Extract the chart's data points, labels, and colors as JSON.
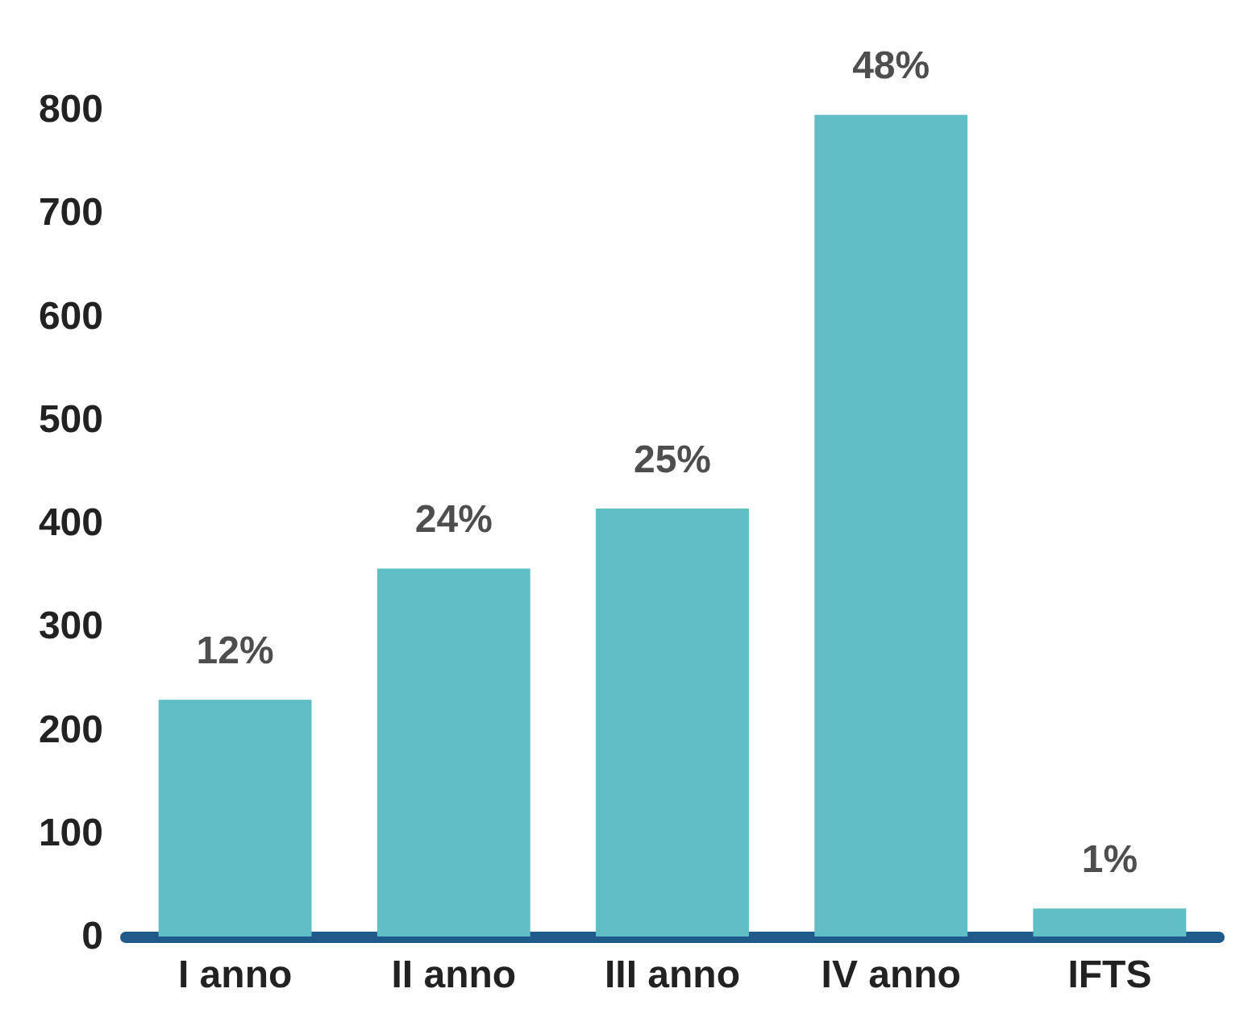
{
  "chart_data": {
    "type": "bar",
    "categories": [
      "I anno",
      "II anno",
      "III anno",
      "IV anno",
      "IFTS"
    ],
    "values": [
      229,
      356,
      414,
      795,
      27
    ],
    "annotations": [
      {
        "text": "12%",
        "x": "I anno",
        "y": 229
      },
      {
        "text": "24%",
        "x": "II anno",
        "y": 356
      },
      {
        "text": "25%",
        "x": "III anno",
        "y": 414
      },
      {
        "text": "48%",
        "x": "IV anno",
        "y": 795
      },
      {
        "text": "1%",
        "x": "IFTS",
        "y": 27
      }
    ],
    "color": "#5fbec6",
    "ylim": [
      0,
      800
    ],
    "yticks": [
      0,
      100,
      200,
      300,
      400,
      500,
      600,
      700,
      800
    ],
    "grid": false
  }
}
